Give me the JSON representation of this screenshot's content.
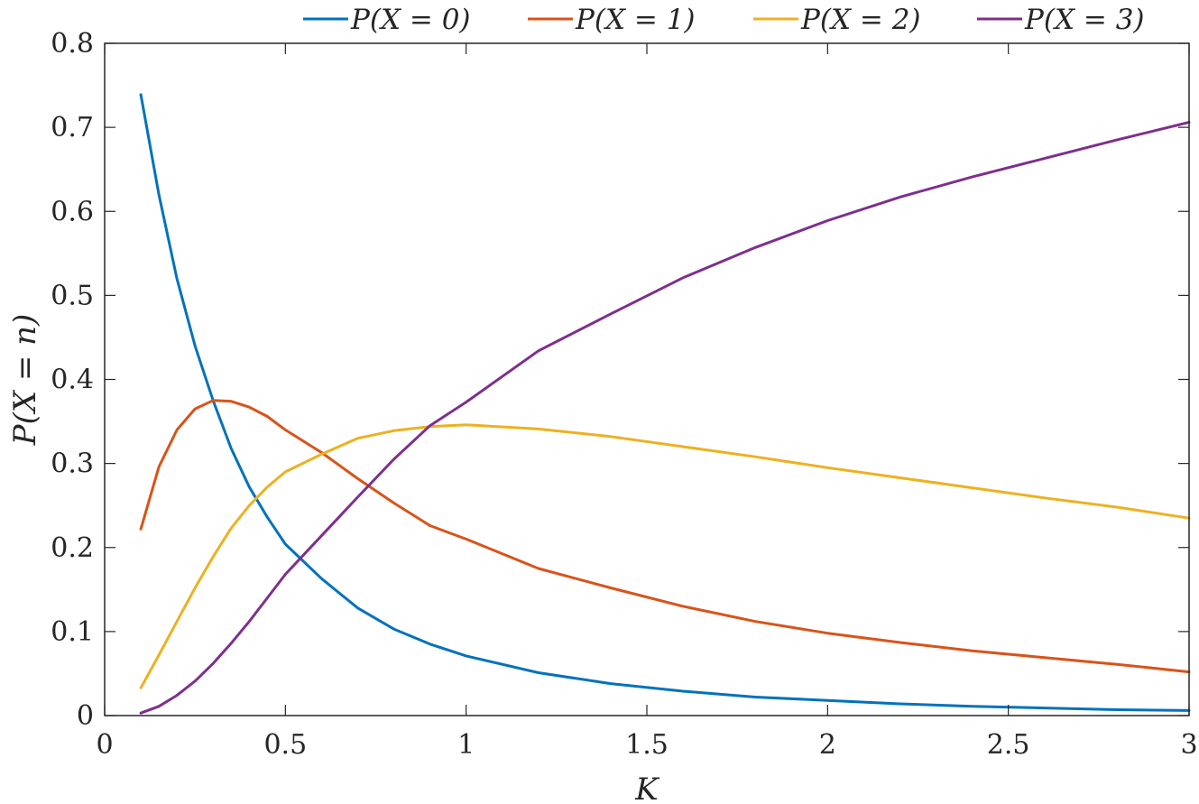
{
  "chart_data": {
    "type": "line",
    "title": "",
    "xlabel": "K",
    "ylabel": "P(X = n)",
    "xlim": [
      0,
      3
    ],
    "ylim": [
      0,
      0.8
    ],
    "grid": false,
    "legend_placement": "top-right, horizontal, outside",
    "x_ticks": [
      "0",
      "0.5",
      "1",
      "1.5",
      "2",
      "2.5",
      "3"
    ],
    "y_ticks": [
      "0",
      "0.1",
      "0.2",
      "0.3",
      "0.4",
      "0.5",
      "0.6",
      "0.7",
      "0.8"
    ],
    "x": [
      0.1,
      0.15,
      0.2,
      0.25,
      0.3,
      0.35,
      0.4,
      0.45,
      0.5,
      0.6,
      0.7,
      0.8,
      0.9,
      1.0,
      1.2,
      1.4,
      1.6,
      1.8,
      2.0,
      2.2,
      2.4,
      2.6,
      2.8,
      3.0
    ],
    "series": [
      {
        "name": "P(X = 0)",
        "color": "#0072BD",
        "values": [
          0.739,
          0.62,
          0.52,
          0.44,
          0.375,
          0.318,
          0.272,
          0.236,
          0.204,
          0.163,
          0.128,
          0.103,
          0.085,
          0.071,
          0.051,
          0.038,
          0.029,
          0.022,
          0.018,
          0.014,
          0.011,
          0.009,
          0.007,
          0.006
        ]
      },
      {
        "name": "P(X = 1)",
        "color": "#D95319",
        "values": [
          0.222,
          0.296,
          0.34,
          0.365,
          0.375,
          0.374,
          0.367,
          0.356,
          0.34,
          0.313,
          0.282,
          0.253,
          0.226,
          0.21,
          0.175,
          0.152,
          0.13,
          0.112,
          0.098,
          0.087,
          0.077,
          0.069,
          0.061,
          0.052
        ]
      },
      {
        "name": "P(X = 2)",
        "color": "#EDB120",
        "values": [
          0.033,
          0.072,
          0.112,
          0.152,
          0.189,
          0.223,
          0.25,
          0.272,
          0.29,
          0.311,
          0.33,
          0.339,
          0.344,
          0.346,
          0.341,
          0.332,
          0.32,
          0.308,
          0.295,
          0.283,
          0.271,
          0.259,
          0.248,
          0.235
        ]
      },
      {
        "name": "P(X = 3)",
        "color": "#7E2F8E",
        "values": [
          0.003,
          0.011,
          0.024,
          0.041,
          0.062,
          0.086,
          0.112,
          0.14,
          0.168,
          0.214,
          0.26,
          0.305,
          0.345,
          0.373,
          0.434,
          0.478,
          0.521,
          0.557,
          0.589,
          0.617,
          0.641,
          0.663,
          0.685,
          0.706
        ]
      }
    ]
  }
}
